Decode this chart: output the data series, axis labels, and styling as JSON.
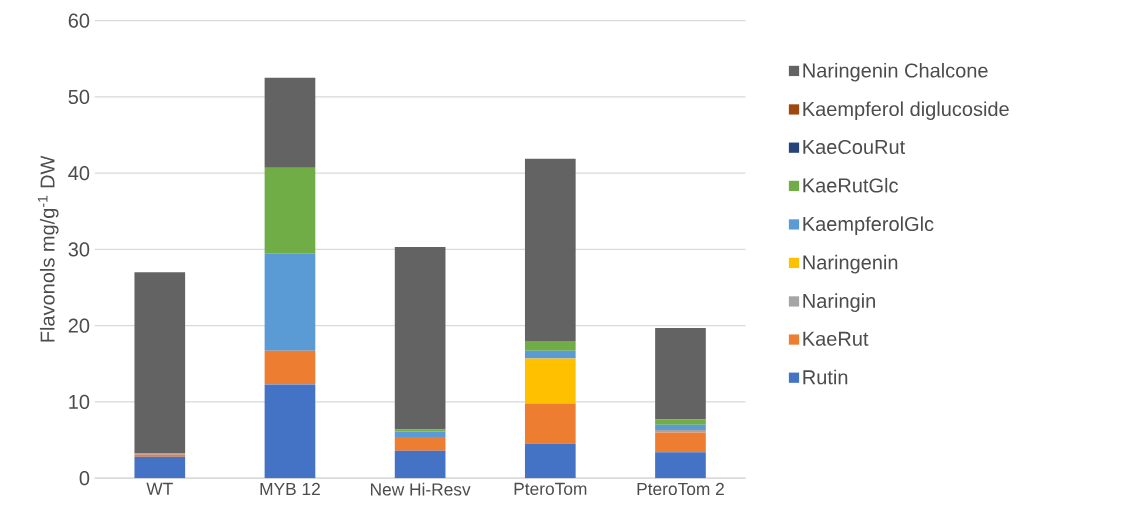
{
  "chart_data": {
    "type": "bar",
    "stacked": true,
    "ylabel": "Flavonols mg/g$^{-1}$ DW",
    "categories": [
      "WT",
      "MYB 12",
      "New Hi-Resv",
      "PteroTom",
      "PteroTom 2"
    ],
    "series": [
      {
        "name": "Rutin",
        "color": "#4472c4",
        "values": [
          2.8,
          12.3,
          3.6,
          4.5,
          3.4
        ]
      },
      {
        "name": "KaeRut",
        "color": "#ed7d31",
        "values": [
          0.3,
          4.4,
          1.8,
          5.3,
          2.6
        ]
      },
      {
        "name": "Naringin",
        "color": "#a5a5a5",
        "values": [
          null,
          0,
          null,
          0,
          0.3
        ]
      },
      {
        "name": "Naringenin",
        "color": "#ffc000",
        "values": [
          0,
          0,
          0,
          5.9,
          0
        ]
      },
      {
        "name": "KaempferolGlc",
        "color": "#5b9bd5",
        "values": [
          0.1,
          12.8,
          0.7,
          1.0,
          0.7
        ]
      },
      {
        "name": "KaeRutGlc",
        "color": "#70ad47",
        "values": [
          0.1,
          11.2,
          0.3,
          1.3,
          0.7
        ]
      },
      {
        "name": "KaeCouRut",
        "color": "#264478",
        "values": [
          0,
          0,
          0,
          0,
          0
        ]
      },
      {
        "name": "Kaempferol diglucoside",
        "color": "#9e480e",
        "values": [
          0,
          0.1,
          0,
          0,
          0
        ]
      },
      {
        "name": "Naringenin Chalcone",
        "color": "#636363",
        "values": [
          23.7,
          11.7,
          23.9,
          23.9,
          12.0
        ]
      }
    ],
    "ylim": [
      0,
      60
    ],
    "yticks": [
      0,
      10,
      20,
      30,
      40,
      50,
      60
    ],
    "grid": "y",
    "legend": "right"
  }
}
